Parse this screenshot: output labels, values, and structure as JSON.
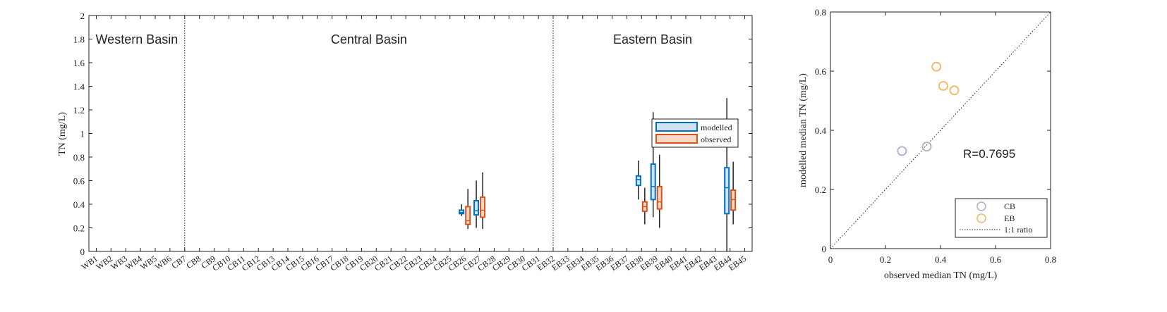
{
  "chart_data": [
    {
      "type": "box",
      "ylabel": "TN (mg/L)",
      "ylim": [
        0,
        2
      ],
      "yticks": [
        "0",
        "0.2",
        "0.4",
        "0.6",
        "0.8",
        "1",
        "1.2",
        "1.4",
        "1.6",
        "1.8",
        "2"
      ],
      "categories": [
        "WB1",
        "WB2",
        "WB3",
        "WB4",
        "WB5",
        "WB6",
        "CB7",
        "CB8",
        "CB9",
        "CB10",
        "CB11",
        "CB12",
        "CB13",
        "CB14",
        "CB15",
        "CB16",
        "CB17",
        "CB18",
        "CB19",
        "CB20",
        "CB21",
        "CB22",
        "CB23",
        "CB24",
        "CB25",
        "CB26",
        "CB27",
        "CB28",
        "CB29",
        "CB30",
        "CB31",
        "EB32",
        "EB33",
        "EB34",
        "EB35",
        "EB36",
        "EB37",
        "EB38",
        "EB39",
        "EB40",
        "EB41",
        "EB42",
        "EB43",
        "EB44",
        "EB45"
      ],
      "regions": [
        "Western Basin",
        "Central Basin",
        "Eastern Basin"
      ],
      "legend": {
        "position": "right",
        "entries": [
          "modelled",
          "observed"
        ]
      },
      "series": [
        {
          "name": "modelled",
          "color": "#0072BD",
          "fill": "#cfe2f3",
          "boxes": [
            {
              "category": "CB26",
              "min": 0.3,
              "q1": 0.32,
              "median": 0.33,
              "q3": 0.35,
              "max": 0.4
            },
            {
              "category": "CB27",
              "min": 0.2,
              "q1": 0.31,
              "median": 0.345,
              "q3": 0.43,
              "max": 0.6
            },
            {
              "category": "EB38",
              "min": 0.44,
              "q1": 0.56,
              "median": 0.61,
              "q3": 0.64,
              "max": 0.77
            },
            {
              "category": "EB39",
              "min": 0.29,
              "q1": 0.44,
              "median": 0.55,
              "q3": 0.74,
              "max": 1.18
            },
            {
              "category": "EB44",
              "min": 0.0,
              "q1": 0.32,
              "median": 0.54,
              "q3": 0.71,
              "max": 1.3
            }
          ]
        },
        {
          "name": "observed",
          "color": "#D95319",
          "fill": "#f8d8c8",
          "boxes": [
            {
              "category": "CB26",
              "min": 0.19,
              "q1": 0.23,
              "median": 0.26,
              "q3": 0.38,
              "max": 0.53
            },
            {
              "category": "CB27",
              "min": 0.19,
              "q1": 0.29,
              "median": 0.35,
              "q3": 0.46,
              "max": 0.67
            },
            {
              "category": "EB38",
              "min": 0.23,
              "q1": 0.34,
              "median": 0.38,
              "q3": 0.42,
              "max": 0.54
            },
            {
              "category": "EB39",
              "min": 0.2,
              "q1": 0.36,
              "median": 0.42,
              "q3": 0.55,
              "max": 0.82
            },
            {
              "category": "EB44",
              "min": 0.23,
              "q1": 0.35,
              "median": 0.44,
              "q3": 0.52,
              "max": 0.76
            }
          ]
        }
      ]
    },
    {
      "type": "scatter",
      "xlabel": "observed median TN (mg/L)",
      "ylabel": "modelled median TN (mg/L)",
      "xlim": [
        0,
        0.8
      ],
      "ylim": [
        0,
        0.8
      ],
      "xticks": [
        "0",
        "0.2",
        "0.4",
        "0.6",
        "0.8"
      ],
      "yticks": [
        "0",
        "0.2",
        "0.4",
        "0.6",
        "0.8"
      ],
      "annotation": "R=0.7695",
      "legend": {
        "position": "bottom-right",
        "entries": [
          "CB",
          "EB",
          "1:1 ratio"
        ]
      },
      "series": [
        {
          "name": "CB",
          "color": "#b3a8d6",
          "x": [
            0.26,
            0.35
          ],
          "y": [
            0.33,
            0.345
          ]
        },
        {
          "name": "EB",
          "color": "#f5b660",
          "x": [
            0.385,
            0.41,
            0.45
          ],
          "y": [
            0.615,
            0.55,
            0.535
          ]
        }
      ]
    }
  ]
}
